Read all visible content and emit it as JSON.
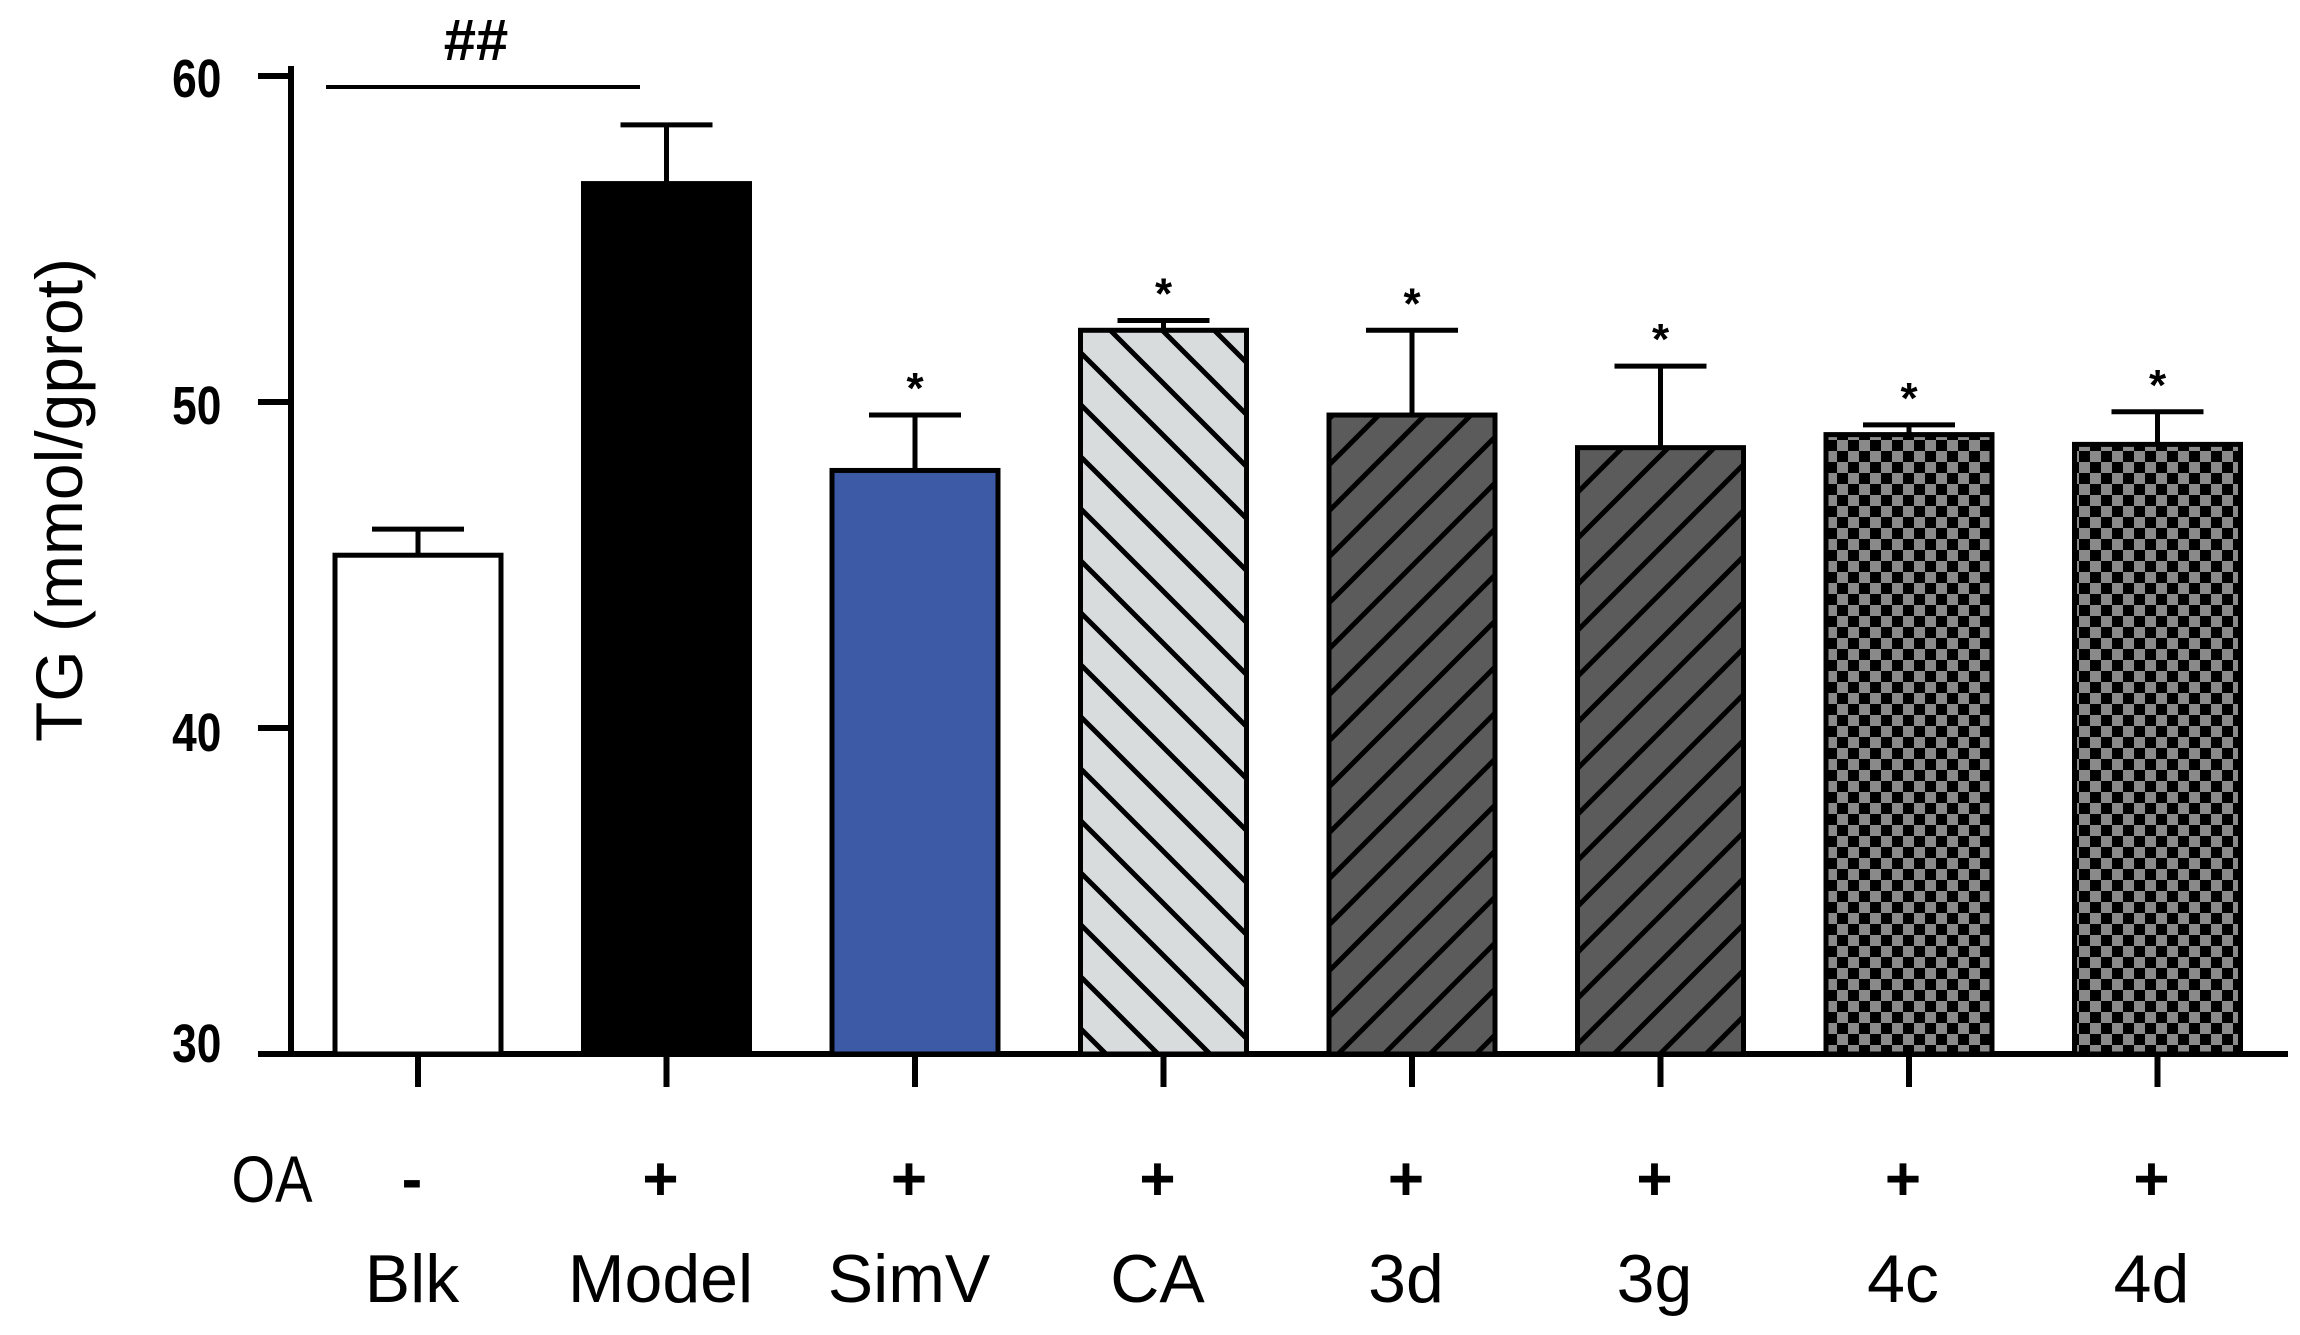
{
  "chart_data": {
    "type": "bar",
    "ylabel": "TG (mmol/gprot)",
    "ylim": [
      30,
      60
    ],
    "yticks": [
      "30",
      "40",
      "50",
      "60"
    ],
    "categories": [
      "Blk",
      "Model",
      "SimV",
      "CA",
      "3d",
      "3g",
      "4c",
      "4d"
    ],
    "values": [
      45.3,
      56.7,
      47.9,
      52.2,
      49.6,
      48.6,
      49.0,
      48.7
    ],
    "errors": [
      0.8,
      1.8,
      1.7,
      0.3,
      2.6,
      2.5,
      0.3,
      1.0
    ],
    "oa_label": "OA",
    "oa_signs": [
      "-",
      "+",
      "+",
      "+",
      "+",
      "+",
      "+",
      "+"
    ],
    "significance": [
      "",
      "",
      "*",
      "*",
      "*",
      "*",
      "*",
      "*"
    ],
    "comparison": {
      "label": "##",
      "from": "Blk",
      "to": "Model"
    },
    "fills": [
      "white",
      "black",
      "#3c5aa6",
      "hatch-back-light",
      "hatch-fwd-dark",
      "hatch-fwd-dark",
      "checker",
      "checker"
    ]
  }
}
